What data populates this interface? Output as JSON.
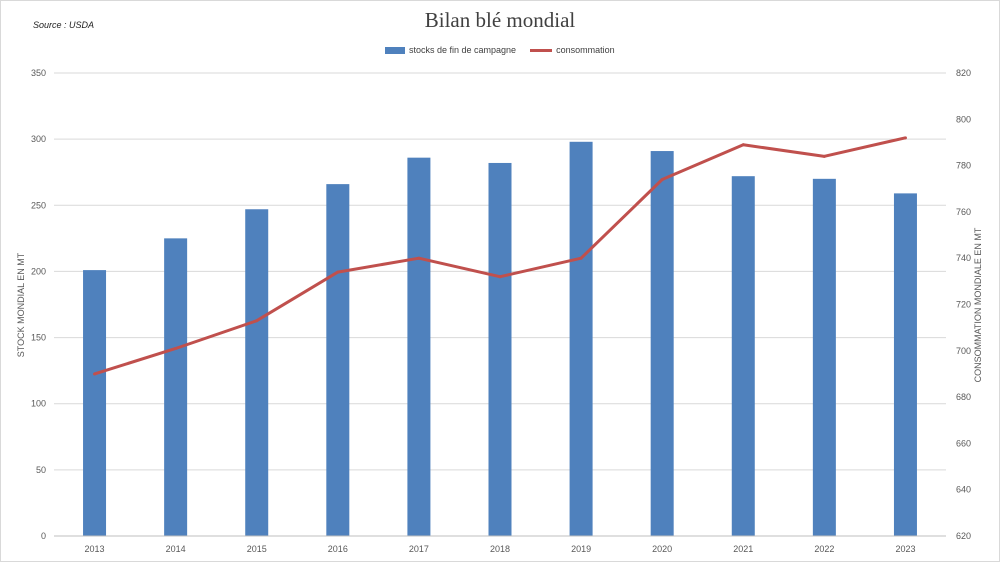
{
  "source": "Source : USDA",
  "chart_data": {
    "type": "bar",
    "title": "Bilan blé mondial",
    "categories": [
      "2013",
      "2014",
      "2015",
      "2016",
      "2017",
      "2018",
      "2019",
      "2020",
      "2021",
      "2022",
      "2023"
    ],
    "series": [
      {
        "name": "stocks de fin de campagne",
        "type": "bar",
        "axis": "left",
        "values": [
          201,
          225,
          247,
          266,
          286,
          282,
          298,
          291,
          272,
          270,
          259
        ],
        "color": "#4f81bd"
      },
      {
        "name": "consommation",
        "type": "line",
        "axis": "right",
        "values": [
          690,
          701,
          713,
          734,
          740,
          732,
          740,
          774,
          789,
          784,
          792
        ],
        "color": "#c0504d"
      }
    ],
    "ylabel": "STOCK MONDIAL EN MT",
    "ylim": [
      0,
      350
    ],
    "yticks": [
      "0",
      "50",
      "100",
      "150",
      "200",
      "250",
      "300",
      "350"
    ],
    "y2label": "CONSOMMATION MONDIALE EN MT",
    "y2lim": [
      620,
      820
    ],
    "y2ticks": [
      "620",
      "640",
      "660",
      "680",
      "700",
      "720",
      "740",
      "760",
      "780",
      "800",
      "820"
    ],
    "grid": true,
    "legend": "top-center"
  }
}
